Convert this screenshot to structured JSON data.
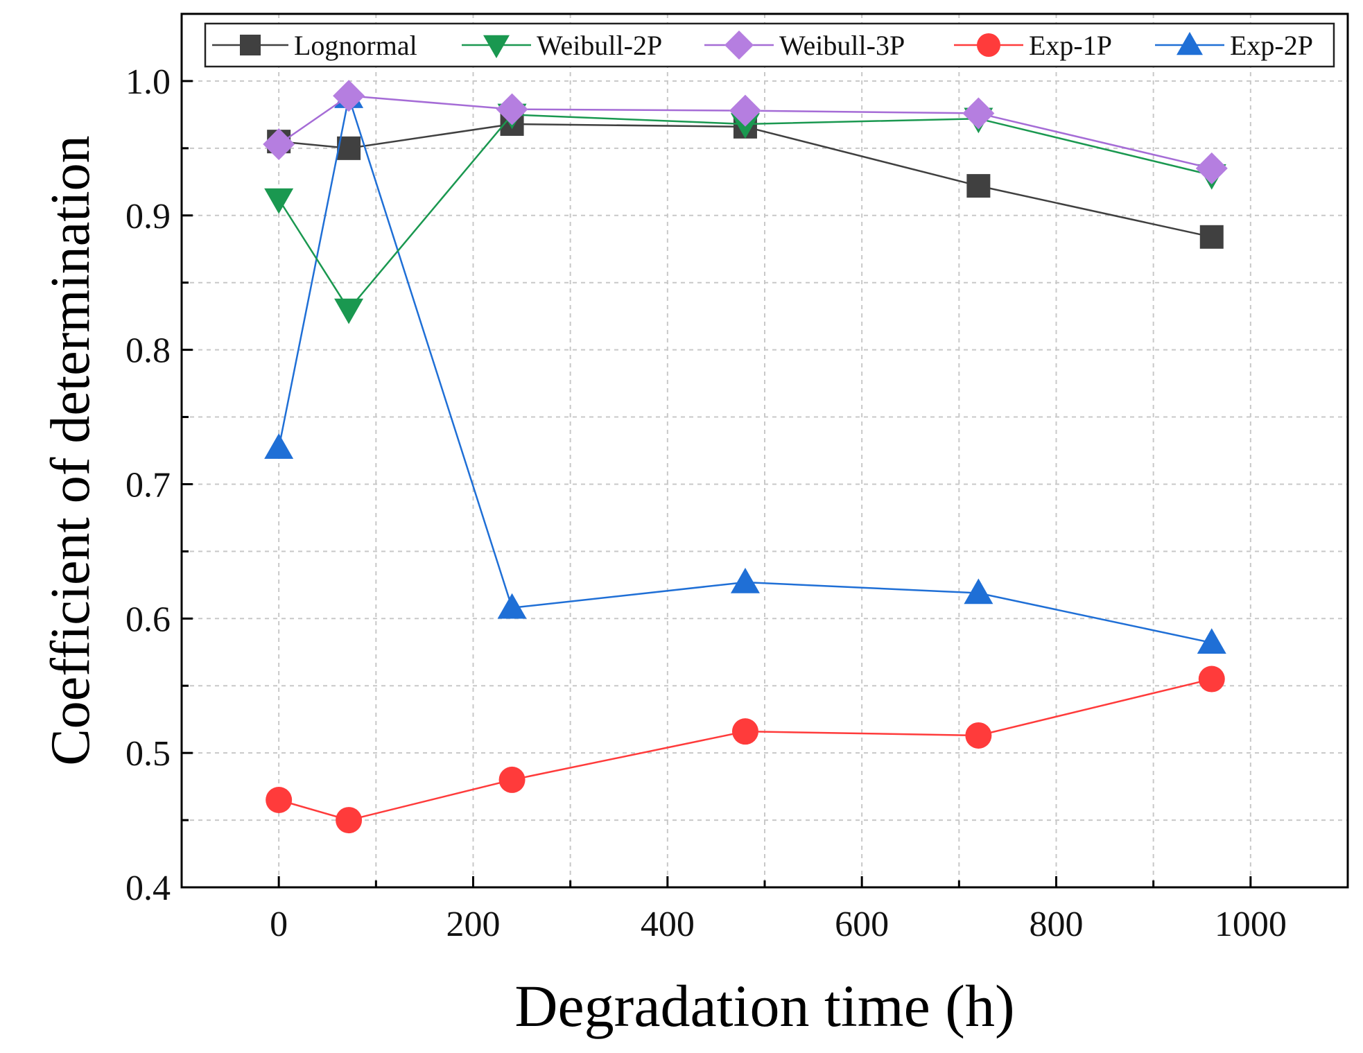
{
  "chart_data": {
    "type": "line",
    "title": "",
    "xlabel": "Degradation time (h)",
    "ylabel": "Coefficient of determination",
    "xlim": [
      -100,
      1100
    ],
    "ylim": [
      0.4,
      1.05
    ],
    "x_ticks": [
      0,
      200,
      400,
      600,
      800,
      1000
    ],
    "x_tick_labels": [
      "0",
      "200",
      "400",
      "600",
      "800",
      "1000"
    ],
    "y_ticks": [
      0.4,
      0.5,
      0.6,
      0.7,
      0.8,
      0.9,
      1.0
    ],
    "y_tick_labels": [
      "0.4",
      "0.5",
      "0.6",
      "0.7",
      "0.8",
      "0.9",
      "1.0"
    ],
    "grid": true,
    "legend_position": "top",
    "x": [
      0,
      72,
      240,
      480,
      720,
      960
    ],
    "series": [
      {
        "name": "Lognormal",
        "marker": "square",
        "color": "#404040",
        "line_color": "#404040",
        "values": [
          0.955,
          0.95,
          0.968,
          0.966,
          0.922,
          0.884
        ]
      },
      {
        "name": "Weibull-2P",
        "marker": "triangle-down",
        "color": "#1a9850",
        "line_color": "#1a9850",
        "values": [
          0.912,
          0.83,
          0.975,
          0.968,
          0.972,
          0.93
        ]
      },
      {
        "name": "Weibull-3P",
        "marker": "diamond",
        "color": "#b57ee0",
        "line_color": "#a56cd6",
        "values": [
          0.953,
          0.989,
          0.979,
          0.978,
          0.976,
          0.935
        ]
      },
      {
        "name": "Exp-1P",
        "marker": "circle",
        "color": "#ff3b3b",
        "line_color": "#ff3b3b",
        "values": [
          0.465,
          0.45,
          0.48,
          0.516,
          0.513,
          0.555
        ]
      },
      {
        "name": "Exp-2P",
        "marker": "triangle-up",
        "color": "#1f6fd6",
        "line_color": "#1f6fd6",
        "values": [
          0.727,
          0.988,
          0.608,
          0.627,
          0.619,
          0.582
        ]
      }
    ]
  }
}
